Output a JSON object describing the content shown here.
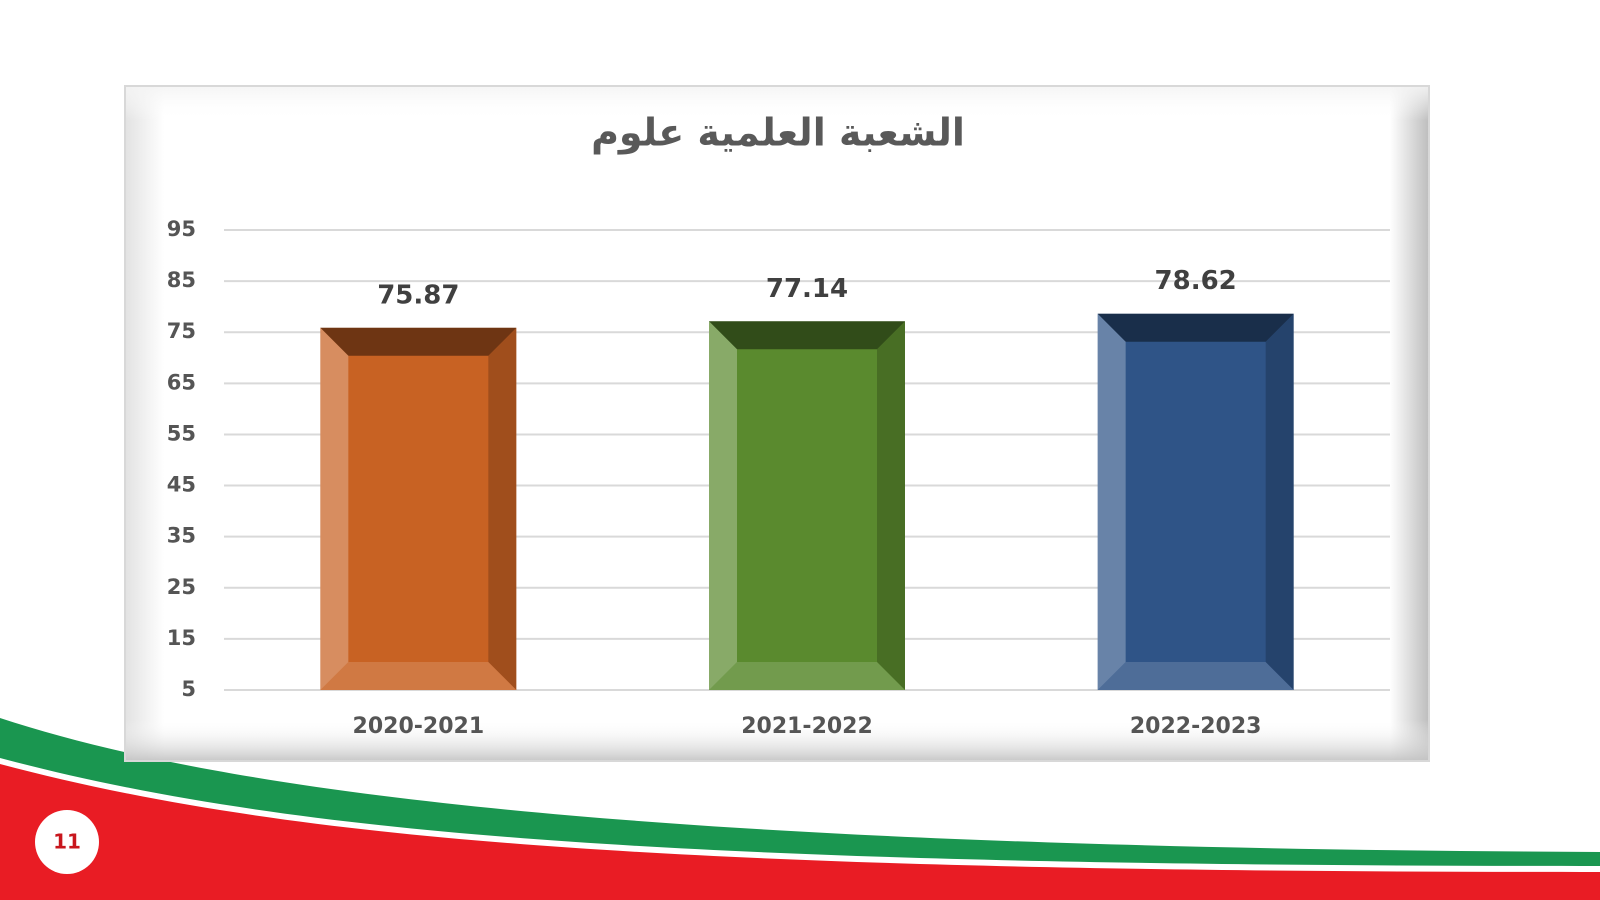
{
  "page_number": "11",
  "chart_data": {
    "type": "bar",
    "title": "الشعبة العلمية علوم",
    "categories": [
      "2020-2021",
      "2021-2022",
      "2022-2023"
    ],
    "values": [
      75.87,
      77.14,
      78.62
    ],
    "colors": [
      "#c86223",
      "#5a8a2e",
      "#2f5487"
    ],
    "ylim": [
      5,
      95
    ],
    "yticks": [
      5,
      15,
      25,
      35,
      45,
      55,
      65,
      75,
      85,
      95
    ],
    "grid": true
  }
}
